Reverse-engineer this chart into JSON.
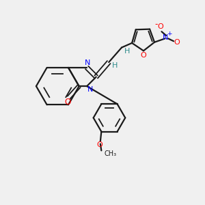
{
  "bg_color": "#f0f0f0",
  "bond_color": "#1a1a1a",
  "N_color": "#0000ff",
  "O_color": "#ff0000",
  "H_color": "#2e8b8b",
  "figsize": [
    3.0,
    3.0
  ],
  "dpi": 100,
  "xlim": [
    0,
    10
  ],
  "ylim": [
    0,
    10
  ]
}
